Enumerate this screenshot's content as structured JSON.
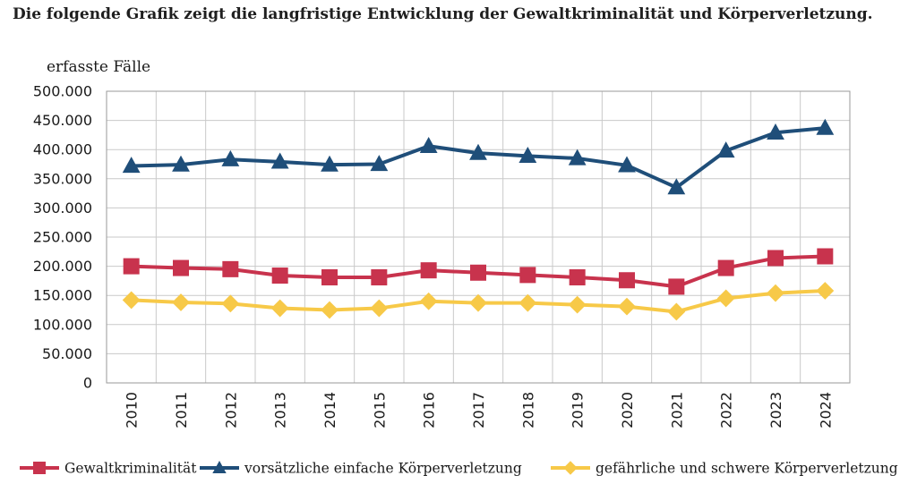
{
  "headline": "Die folgende Grafik zeigt die langfristige Entwicklung der Gewaltkriminalität und Körperverletzung.",
  "chart_data": {
    "type": "line",
    "ylabel": "erfasste Fälle",
    "ylim": [
      0,
      500000
    ],
    "y_ticks": [
      0,
      50000,
      100000,
      150000,
      200000,
      250000,
      300000,
      350000,
      400000,
      450000,
      500000
    ],
    "y_tick_labels": [
      "0",
      "50.000",
      "100.000",
      "150.000",
      "200.000",
      "250.000",
      "300.000",
      "350.000",
      "400.000",
      "450.000",
      "500.000"
    ],
    "categories": [
      "2010",
      "2011",
      "2012",
      "2013",
      "2014",
      "2015",
      "2016",
      "2017",
      "2018",
      "2019",
      "2020",
      "2021",
      "2022",
      "2023",
      "2024"
    ],
    "grid": true,
    "legend_position": "bottom",
    "series": [
      {
        "name": "Gewaltkriminalität",
        "color": "#c8334d",
        "marker": "square",
        "values": [
          200000,
          197000,
          195000,
          184000,
          181000,
          181000,
          193000,
          189000,
          185000,
          181000,
          176000,
          165000,
          197000,
          214000,
          217000
        ]
      },
      {
        "name": "vorsätzliche einfache Körperverletzung",
        "color": "#1f4e79",
        "marker": "triangle",
        "values": [
          372000,
          374000,
          383000,
          379000,
          374000,
          375000,
          406000,
          394000,
          389000,
          385000,
          373000,
          335000,
          398000,
          429000,
          437000
        ]
      },
      {
        "name": "gefährliche und schwere Körperverletzung",
        "color": "#f7c948",
        "marker": "diamond",
        "values": [
          142000,
          138000,
          136000,
          128000,
          125000,
          128000,
          140000,
          137000,
          137000,
          134000,
          131000,
          122000,
          145000,
          154000,
          158000
        ]
      }
    ]
  }
}
